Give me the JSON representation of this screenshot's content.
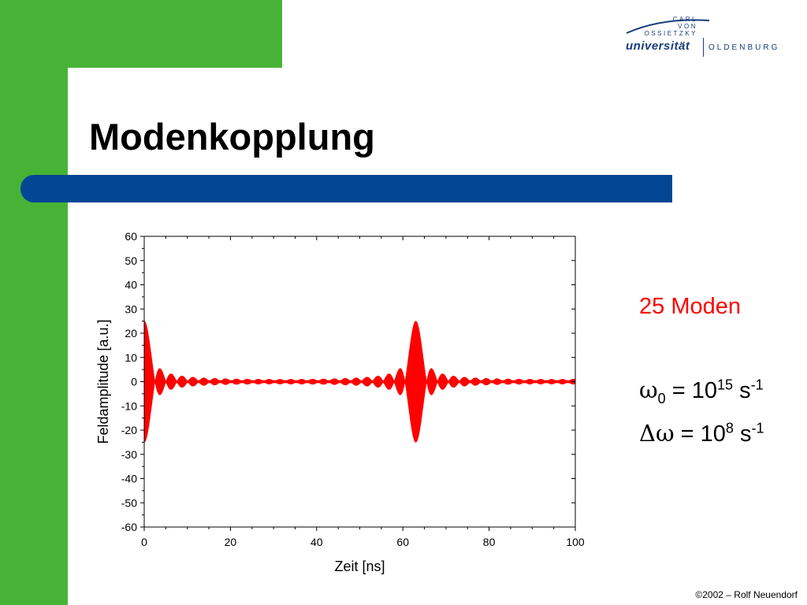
{
  "slide": {
    "title": "Modenkopplung",
    "footer": "©2002 – Rolf Neuendorf"
  },
  "logo": {
    "line1": "CARL",
    "line2": "VON",
    "line3": "OSSIETZKY",
    "name": "universität",
    "city": "OLDENBURG"
  },
  "info": {
    "modes": "25 Moden",
    "omega_symbol": "ω",
    "omega_sub": "0",
    "omega_eq": " = 10",
    "omega_exp": "15",
    "omega_unit": " s",
    "omega_unit_exp": "-1",
    "delta_symbol": "Δω",
    "delta_eq": " = 10",
    "delta_exp": "8",
    "delta_unit": " s",
    "delta_unit_exp": "-1"
  },
  "colors": {
    "green": "#47b336",
    "blue": "#034694",
    "signal": "#ff0000"
  },
  "chart_data": {
    "type": "line",
    "title": "",
    "xlabel": "Zeit [ns]",
    "ylabel": "Feldamplitude [a.u.]",
    "xlim": [
      0,
      100
    ],
    "ylim": [
      -60,
      60
    ],
    "xticks": [
      0,
      20,
      40,
      60,
      80,
      100
    ],
    "yticks": [
      60,
      50,
      40,
      30,
      20,
      10,
      0,
      -10,
      -20,
      -30,
      -40,
      -50,
      -60
    ],
    "grid": false,
    "series": [
      {
        "color": "#ff0000",
        "envelope_peaks": [
          {
            "x": 0,
            "amplitude": 25
          },
          {
            "x": 63,
            "amplitude": 24.5
          }
        ],
        "modes": 25
      }
    ]
  }
}
